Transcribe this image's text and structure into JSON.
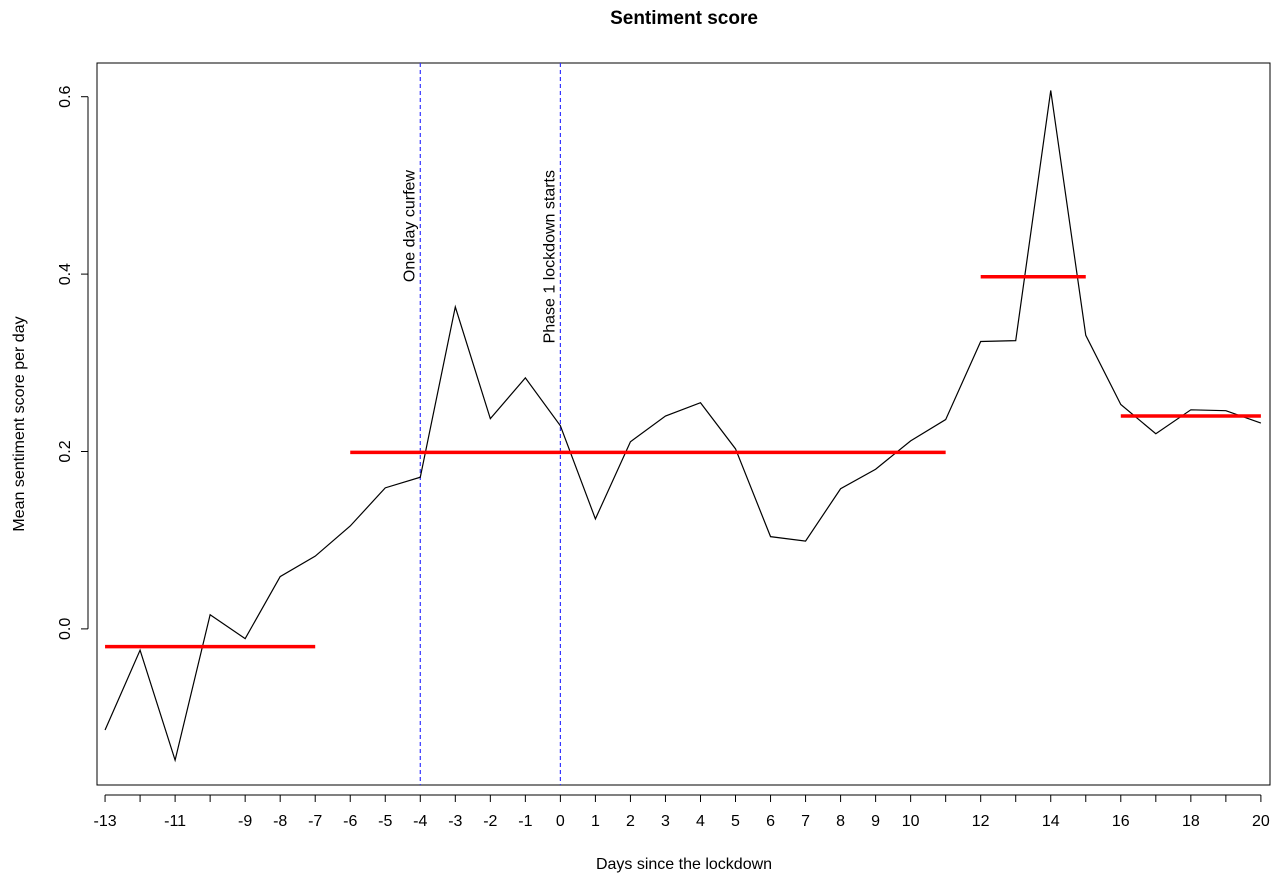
{
  "chart_data": {
    "type": "line",
    "title": "Sentiment score",
    "x_label": "Days since the lockdown",
    "y_label": "Mean sentiment score per day",
    "x": [
      -13,
      -12,
      -11,
      -10,
      -9,
      -8,
      -7,
      -6,
      -5,
      -4,
      -3,
      -2,
      -1,
      0,
      1,
      2,
      3,
      4,
      5,
      6,
      7,
      8,
      9,
      10,
      11,
      12,
      13,
      14,
      15,
      16,
      17,
      18,
      19,
      20
    ],
    "series": [
      {
        "color": "#000000",
        "values": [
          -0.114,
          -0.024,
          -0.148,
          0.016,
          -0.011,
          0.059,
          0.082,
          0.116,
          0.159,
          0.171,
          0.363,
          0.237,
          0.283,
          0.229,
          0.124,
          0.211,
          0.24,
          0.255,
          0.203,
          0.104,
          0.099,
          0.158,
          0.18,
          0.212,
          0.236,
          0.324,
          0.325,
          0.607,
          0.331,
          0.253,
          0.22,
          0.247,
          0.246,
          0.232
        ]
      }
    ],
    "segments": [
      {
        "x": [
          -13,
          -7
        ],
        "value": -0.02
      },
      {
        "x": [
          -6,
          11
        ],
        "value": 0.199
      },
      {
        "x": [
          12,
          15
        ],
        "value": 0.397
      },
      {
        "x": [
          16,
          20
        ],
        "value": 0.24
      }
    ],
    "segment_color": "#ff0000",
    "vlines": [
      {
        "x": -4,
        "label": "One day curfew"
      },
      {
        "x": 0,
        "label": "Phase 1 lockdown starts"
      }
    ],
    "vline_color": "#3333ff",
    "xlim": [
      -13.23,
      20.26
    ],
    "ylim": [
      -0.176,
      0.638
    ],
    "xticks": [
      -13,
      -11,
      -9,
      -8,
      -7,
      -6,
      -5,
      -4,
      -3,
      -2,
      -1,
      0,
      1,
      2,
      3,
      4,
      5,
      6,
      7,
      8,
      9,
      10,
      12,
      14,
      16,
      18,
      20
    ],
    "xtick_marks": [
      -13,
      -12,
      -11,
      -10,
      -9,
      -8,
      -7,
      -6,
      -5,
      -4,
      -3,
      -2,
      -1,
      0,
      1,
      2,
      3,
      4,
      5,
      6,
      7,
      8,
      9,
      10,
      11,
      12,
      13,
      14,
      15,
      16,
      17,
      18,
      19,
      20
    ],
    "yticks": [
      {
        "value": 0,
        "label": "0.0"
      },
      0.2,
      0.4,
      0.6
    ]
  }
}
